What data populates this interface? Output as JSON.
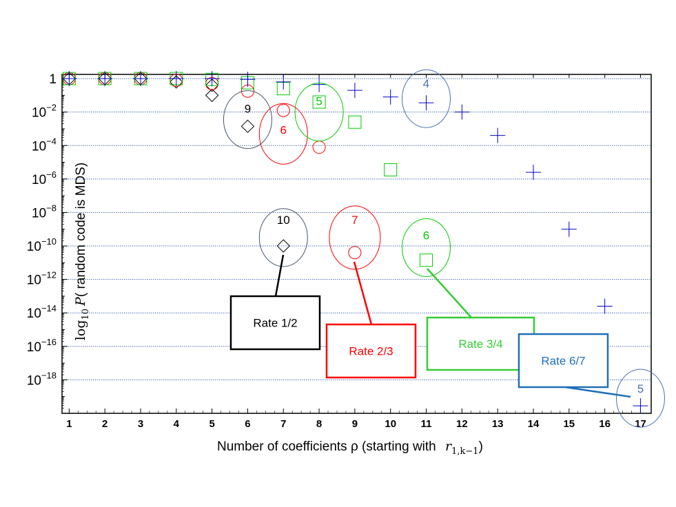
{
  "chart_data": {
    "type": "scatter",
    "title": "",
    "xlabel": "Number of coefficients ρ (starting with",
    "xlabel_math": "r",
    "xlabel_math_sub": "1,k−1",
    "xlabel_close": ")",
    "ylabel_prefix": "log",
    "ylabel_sub": "10",
    "ylabel_P": "P",
    "ylabel_rest": "( random code is MDS)",
    "xlim": [
      0.8,
      17.3
    ],
    "ylim_log10": [
      -20,
      0.25
    ],
    "x_ticks": [
      "1",
      "2",
      "3",
      "4",
      "5",
      "6",
      "7",
      "8",
      "9",
      "10",
      "11",
      "12",
      "13",
      "14",
      "15",
      "16",
      "17"
    ],
    "y_ticks": [
      {
        "value": 0,
        "base": "1",
        "exp": ""
      },
      {
        "value": -2,
        "base": "10",
        "exp": "−2"
      },
      {
        "value": -4,
        "base": "10",
        "exp": "−4"
      },
      {
        "value": -6,
        "base": "10",
        "exp": "−6"
      },
      {
        "value": -8,
        "base": "10",
        "exp": "−8"
      },
      {
        "value": -10,
        "base": "10",
        "exp": "−10"
      },
      {
        "value": -12,
        "base": "10",
        "exp": "−12"
      },
      {
        "value": -14,
        "base": "10",
        "exp": "−14"
      },
      {
        "value": -16,
        "base": "10",
        "exp": "−16"
      },
      {
        "value": -18,
        "base": "10",
        "exp": "−18"
      }
    ],
    "grid": "horizontal dotted",
    "series": [
      {
        "name": "Rate 1/2",
        "marker": "diamond",
        "color": "#000000",
        "x": [
          1,
          2,
          3,
          4,
          5,
          5,
          6,
          7
        ],
        "log10_y": [
          0,
          0,
          0,
          -0.2,
          -0.4,
          -1.0,
          -2.85,
          -10.0
        ]
      },
      {
        "name": "Rate 2/3",
        "marker": "circle",
        "color": "#ff0000",
        "x": [
          1,
          2,
          3,
          4,
          5,
          6,
          7,
          8,
          9
        ],
        "log10_y": [
          0,
          0,
          0,
          -0.1,
          -0.3,
          -0.75,
          -1.9,
          -4.1,
          -10.4
        ]
      },
      {
        "name": "Rate 3/4",
        "marker": "square",
        "color": "#00cc00",
        "x": [
          1,
          2,
          3,
          4,
          5,
          6,
          7,
          8,
          9,
          10,
          11
        ],
        "log10_y": [
          0,
          0,
          0,
          0,
          -0.05,
          -0.25,
          -0.6,
          -1.4,
          -2.6,
          -5.45,
          -10.85
        ]
      },
      {
        "name": "Rate 6/7",
        "marker": "plus",
        "color": "#0000cc",
        "x": [
          1,
          2,
          3,
          4,
          5,
          6,
          7,
          8,
          9,
          10,
          11,
          12,
          13,
          14,
          15,
          16,
          17
        ],
        "log10_y": [
          0,
          0,
          0,
          0,
          0,
          -0.05,
          -0.2,
          -0.35,
          -0.7,
          -1.1,
          -1.45,
          -2.0,
          -3.4,
          -5.6,
          -9.0,
          -13.6,
          -19.55
        ]
      }
    ],
    "annotations": [
      {
        "text": "9",
        "color": "#000000",
        "ring": "#44546a",
        "cx": 6,
        "cy": -2.45
      },
      {
        "text": "6",
        "color": "#ff0000",
        "ring": "#ff0000",
        "cx": 7,
        "cy": -3.3
      },
      {
        "text": "5",
        "color": "#00cc00",
        "ring": "#00cc00",
        "cx": 8,
        "cy": -2.0
      },
      {
        "text": "4",
        "color": "#4a6fb5",
        "ring": "#4a6fb5",
        "cx": 11,
        "cy": -1.2
      },
      {
        "text": "10",
        "color": "#000000",
        "ring": "#44546a",
        "cx": 7,
        "cy": -9.5
      },
      {
        "text": "7",
        "color": "#ff0000",
        "ring": "#ff0000",
        "cx": 9,
        "cy": -9.5
      },
      {
        "text": "6",
        "color": "#00cc00",
        "ring": "#00cc00",
        "cx": 11,
        "cy": -10.1
      },
      {
        "text": "5",
        "color": "#4a6fb5",
        "ring": "#4a6fb5",
        "cx": 17,
        "cy": -19.1
      }
    ],
    "legend_boxes": [
      {
        "label": "Rate 1/2",
        "color": "#000000"
      },
      {
        "label": "Rate 2/3",
        "color": "#ff0000"
      },
      {
        "label": "Rate 3/4",
        "color": "#33cc33"
      },
      {
        "label": "Rate 6/7",
        "color": "#1f6fb8"
      }
    ]
  }
}
